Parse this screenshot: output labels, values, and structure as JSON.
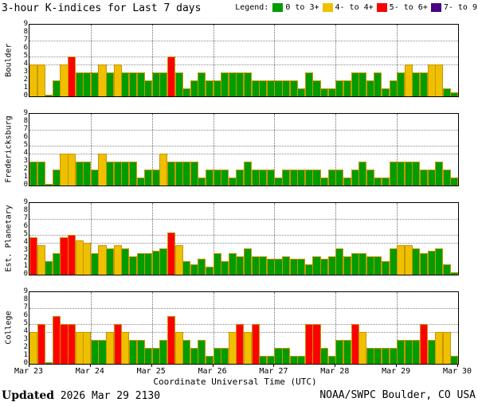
{
  "title": "3-hour K-indices for Last 7 days",
  "legend": {
    "label": "Legend:",
    "items": [
      {
        "label": "0 to 3+",
        "color": "#009c00"
      },
      {
        "label": "4- to 4+",
        "color": "#efc000"
      },
      {
        "label": "5- to 6+",
        "color": "#ff0000"
      },
      {
        "label": "7- to 9",
        "color": "#4b0082"
      }
    ]
  },
  "footer": {
    "updated_label": "Updated",
    "updated_value": " 2026 Mar 29 2130",
    "credit": "NOAA/SWPC Boulder, CO USA"
  },
  "chart_data": {
    "type": "bar",
    "xlabel": "Coordinate Universal Time (UTC)",
    "x_tick_labels": [
      "Mar 23",
      "Mar 24",
      "Mar 25",
      "Mar 26",
      "Mar 27",
      "Mar 28",
      "Mar 29",
      "Mar 30"
    ],
    "ylim": [
      0,
      9
    ],
    "y_tick_labels": [
      "0",
      "1",
      "2",
      "3",
      "4",
      "5",
      "6",
      "7",
      "8",
      "9"
    ],
    "gridline_ks": [
      4,
      5,
      7
    ],
    "bars_per_day": 8,
    "days": 7,
    "color_thresholds": {
      "green_below": 3.67,
      "yellow_below": 4.67,
      "red_below": 6.67
    },
    "colors": {
      "green": "#009c00",
      "yellow": "#efc000",
      "red": "#ff0000",
      "purple": "#4b0082",
      "bar_outline": "#c79600"
    },
    "panels": [
      {
        "station": "Boulder",
        "values": [
          4,
          4,
          0,
          2,
          4,
          5,
          3,
          3,
          3,
          4,
          3,
          4,
          3,
          3,
          3,
          2,
          3,
          3,
          5,
          3,
          1,
          2,
          3,
          2,
          2,
          3,
          3,
          3,
          3,
          2,
          2,
          2,
          2,
          2,
          2,
          1,
          3,
          2,
          1,
          1,
          2,
          2,
          3,
          3,
          2,
          3,
          1,
          2,
          3,
          4,
          3,
          3,
          4,
          4,
          1,
          0.5
        ]
      },
      {
        "station": "Fredericksburg",
        "values": [
          3,
          3,
          0,
          2,
          4,
          4,
          3,
          3,
          2,
          4,
          3,
          3,
          3,
          3,
          1,
          2,
          2,
          4,
          3,
          3,
          3,
          3,
          1,
          2,
          2,
          2,
          1,
          2,
          3,
          2,
          2,
          2,
          1,
          2,
          2,
          2,
          2,
          2,
          1,
          2,
          2,
          1,
          2,
          3,
          2,
          1,
          1,
          3,
          3,
          3,
          3,
          2,
          2,
          3,
          2,
          1
        ]
      },
      {
        "station": "Est. Planetary",
        "values": [
          4.7,
          3.7,
          1.7,
          2.7,
          4.7,
          5.0,
          4.3,
          4.0,
          2.7,
          3.7,
          3.3,
          3.7,
          3.3,
          2.3,
          2.7,
          2.7,
          3.0,
          3.3,
          5.3,
          3.7,
          1.7,
          1.3,
          2.0,
          1.0,
          2.7,
          1.7,
          2.7,
          2.3,
          3.3,
          2.3,
          2.3,
          2.0,
          2.0,
          2.3,
          2.0,
          2.0,
          1.3,
          2.3,
          2.0,
          2.3,
          3.3,
          2.3,
          2.7,
          2.7,
          2.3,
          2.3,
          1.7,
          3.3,
          3.7,
          3.7,
          3.3,
          2.7,
          3.0,
          3.3,
          1.3,
          0.3
        ]
      },
      {
        "station": "College",
        "values": [
          4,
          5,
          0,
          6,
          5,
          5,
          4,
          4,
          3,
          3,
          4,
          5,
          4,
          3,
          3,
          2,
          2,
          3,
          6,
          4,
          3,
          2,
          3,
          1,
          2,
          2,
          4,
          5,
          4,
          5,
          1,
          1,
          2,
          2,
          1,
          1,
          5,
          5,
          2,
          1,
          3,
          3,
          5,
          4,
          2,
          2,
          2,
          2,
          3,
          3,
          3,
          5,
          3,
          4,
          4,
          1
        ]
      }
    ]
  }
}
